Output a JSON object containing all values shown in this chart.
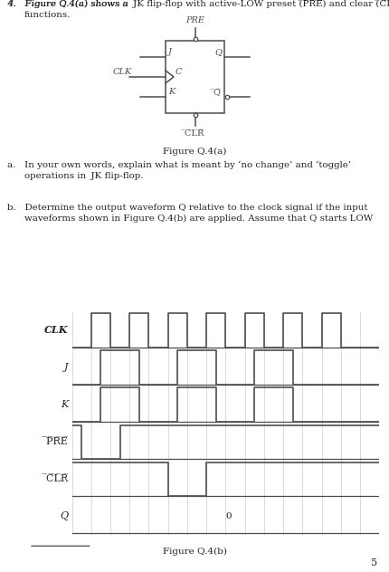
{
  "bg_color": "#ffffff",
  "text_color": "#222222",
  "lc": "#4d4d4d",
  "grid_color": "#cccccc",
  "CLK": [
    0,
    0,
    1,
    1,
    0,
    0,
    1,
    1,
    0,
    0,
    1,
    1,
    0,
    0,
    1,
    1,
    0,
    0,
    1,
    1,
    0,
    0,
    1,
    1,
    0,
    0,
    1,
    1,
    0,
    0,
    0,
    0
  ],
  "J": [
    0,
    0,
    0,
    1,
    1,
    1,
    1,
    0,
    0,
    0,
    0,
    1,
    1,
    1,
    1,
    0,
    0,
    0,
    0,
    1,
    1,
    1,
    1,
    0,
    0,
    0,
    0,
    0,
    0,
    0,
    0,
    0
  ],
  "K": [
    0,
    0,
    0,
    1,
    1,
    1,
    1,
    0,
    0,
    0,
    0,
    1,
    1,
    1,
    1,
    0,
    0,
    0,
    0,
    1,
    1,
    1,
    1,
    0,
    0,
    0,
    0,
    0,
    0,
    0,
    0,
    0
  ],
  "PRE": [
    1,
    0,
    0,
    0,
    0,
    1,
    1,
    1,
    1,
    1,
    1,
    1,
    1,
    1,
    1,
    1,
    1,
    1,
    1,
    1,
    1,
    1,
    1,
    1,
    1,
    1,
    1,
    1,
    1,
    1,
    1,
    1
  ],
  "CLR": [
    1,
    1,
    1,
    1,
    1,
    1,
    1,
    1,
    1,
    1,
    0,
    0,
    0,
    0,
    1,
    1,
    1,
    1,
    1,
    1,
    1,
    1,
    1,
    1,
    1,
    1,
    1,
    1,
    1,
    1,
    1,
    1
  ]
}
